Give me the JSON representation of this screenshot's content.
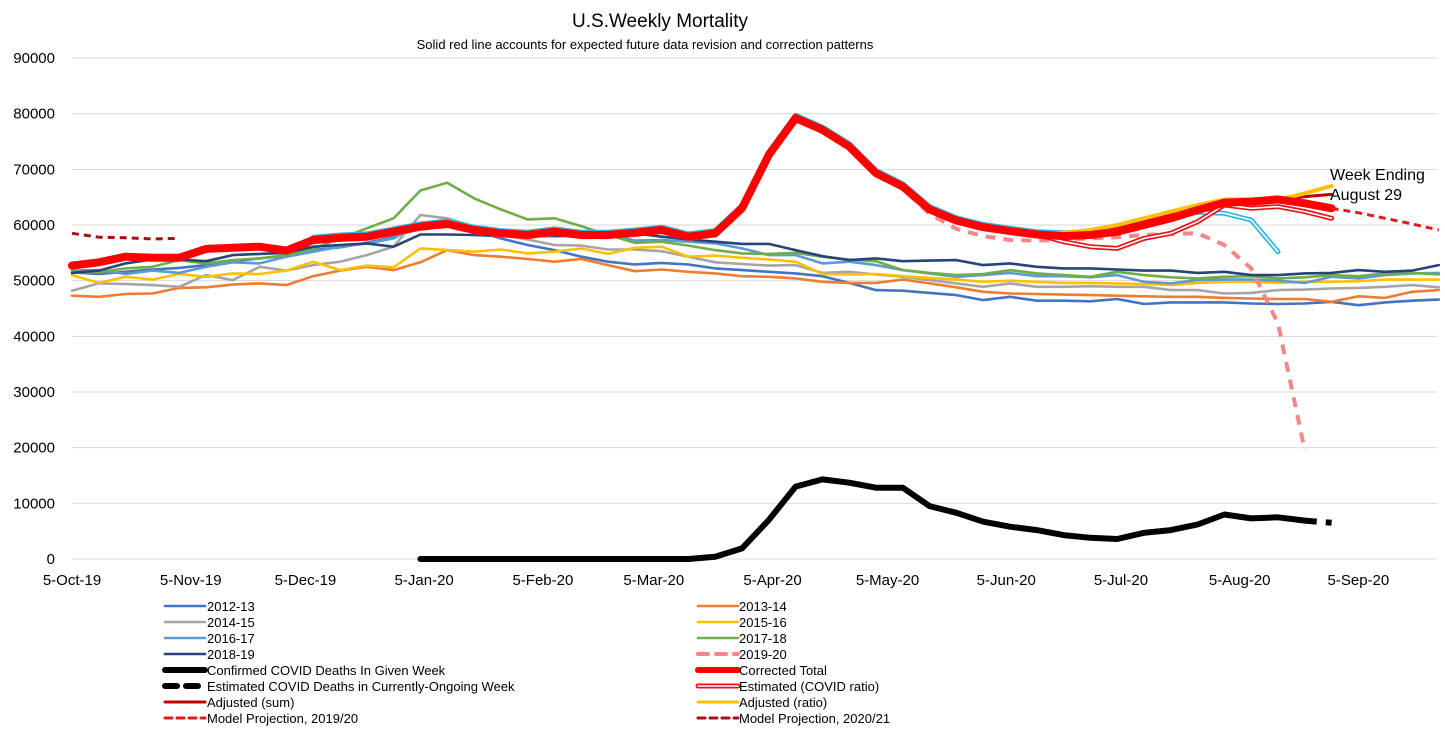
{
  "chart_data": {
    "type": "line",
    "title": "U.S.Weekly Mortality",
    "subtitle": "Solid red line accounts for expected future data revision and correction patterns",
    "xlabel": "",
    "ylabel": "",
    "x_unit": "week index (weekly points starting 5-Oct-19)",
    "ylim": [
      0,
      90000
    ],
    "y_ticks": [
      "0",
      "10000",
      "20000",
      "30000",
      "40000",
      "50000",
      "60000",
      "70000",
      "80000",
      "90000"
    ],
    "x_ticks": [
      {
        "label": "5-Oct-19",
        "week": 0
      },
      {
        "label": "5-Nov-19",
        "week": 4.43
      },
      {
        "label": "5-Dec-19",
        "week": 8.71
      },
      {
        "label": "5-Jan-20",
        "week": 13.14
      },
      {
        "label": "5-Feb-20",
        "week": 17.57
      },
      {
        "label": "5-Mar-20",
        "week": 21.71
      },
      {
        "label": "5-Apr-20",
        "week": 26.14
      },
      {
        "label": "5-May-20",
        "week": 30.43
      },
      {
        "label": "5-Jun-20",
        "week": 34.86
      },
      {
        "label": "5-Jul-20",
        "week": 39.14
      },
      {
        "label": "5-Aug-20",
        "week": 43.57
      },
      {
        "label": "5-Sep-20",
        "week": 48
      }
    ],
    "grid": true,
    "legend_position": "bottom",
    "annotation": {
      "line1": "Week Ending",
      "line2": "August 29"
    },
    "series": [
      {
        "id": "s1213",
        "name": "2012-13",
        "color": "#4472C4",
        "style": "solid",
        "start": 0,
        "values": [
          51500,
          51200,
          51600,
          52000,
          52300,
          52800,
          53500,
          54000,
          54500,
          55500,
          56000,
          56800,
          57800,
          59500,
          60500,
          59000,
          57600,
          56400,
          55500,
          54300,
          53400,
          52900,
          53200,
          52900,
          52200,
          51900,
          51600,
          51300,
          50800,
          49600,
          48300,
          48200,
          47800,
          47400,
          46500,
          47100,
          46400,
          46400,
          46300,
          46700,
          45800,
          46100,
          46100,
          46100,
          45900,
          45800,
          45900,
          46200,
          45600,
          46100,
          46400,
          46600
        ]
      },
      {
        "id": "s1314",
        "name": "2013-14",
        "color": "#ED7D31",
        "style": "solid",
        "start": 0,
        "values": [
          47300,
          47100,
          47600,
          47700,
          48700,
          48800,
          49300,
          49500,
          49200,
          50800,
          51800,
          52500,
          51900,
          53300,
          55500,
          54600,
          54300,
          53900,
          53400,
          53900,
          52800,
          51700,
          52000,
          51600,
          51300,
          50800,
          50700,
          50400,
          49800,
          49600,
          49600,
          50200,
          49500,
          48800,
          48000,
          47700,
          47600,
          47500,
          47400,
          47300,
          47200,
          47100,
          47100,
          46900,
          46800,
          46700,
          46700,
          46200,
          47200,
          46900,
          48000,
          48300
        ]
      },
      {
        "id": "s1415",
        "name": "2014-15",
        "color": "#A5A5A5",
        "style": "solid",
        "start": 0,
        "values": [
          48200,
          49500,
          49400,
          49200,
          48900,
          51000,
          50100,
          52500,
          51800,
          52800,
          53400,
          54600,
          56100,
          61800,
          61200,
          59700,
          58200,
          57400,
          56400,
          56300,
          55600,
          55600,
          55300,
          54300,
          53300,
          53000,
          52700,
          52800,
          51400,
          51600,
          51100,
          50700,
          50100,
          49500,
          48900,
          49500,
          48900,
          48900,
          49000,
          48900,
          48900,
          48300,
          48300,
          47700,
          47800,
          48300,
          48400,
          48600,
          48700,
          48900,
          49200,
          48800
        ]
      },
      {
        "id": "s1516",
        "name": "2015-16",
        "color": "#FFC000",
        "style": "solid",
        "start": 0,
        "values": [
          51000,
          49600,
          50700,
          50200,
          51200,
          50700,
          51300,
          51200,
          51800,
          53400,
          51900,
          52700,
          52400,
          55800,
          55500,
          55200,
          55600,
          54900,
          55200,
          55800,
          54800,
          55900,
          56100,
          54300,
          54500,
          54100,
          53800,
          53400,
          51200,
          51100,
          51200,
          50800,
          50500,
          50200,
          49800,
          50000,
          49800,
          49600,
          49600,
          49500,
          49400,
          49200,
          49600,
          49800,
          49800,
          49600,
          49800,
          49800,
          49900,
          50200,
          50200,
          50200
        ]
      },
      {
        "id": "s1617",
        "name": "2016-17",
        "color": "#5B9BD5",
        "style": "solid",
        "start": 0,
        "values": [
          51800,
          51900,
          51200,
          51800,
          51400,
          52500,
          53300,
          53100,
          54300,
          55200,
          56100,
          56700,
          57600,
          60300,
          60900,
          59100,
          59100,
          58800,
          59100,
          58800,
          58500,
          57200,
          57300,
          57000,
          56700,
          55800,
          54600,
          54600,
          53100,
          53400,
          52800,
          51900,
          51300,
          50700,
          51000,
          51400,
          50800,
          50800,
          50600,
          51000,
          49800,
          49500,
          50100,
          50200,
          50200,
          50000,
          49600,
          50700,
          50400,
          51000,
          51300,
          51400
        ]
      },
      {
        "id": "s1718",
        "name": "2017-18",
        "color": "#70AD47",
        "style": "solid",
        "start": 0,
        "values": [
          51600,
          51500,
          52200,
          52500,
          53700,
          53100,
          53700,
          54000,
          54600,
          55700,
          57600,
          59400,
          61200,
          66200,
          67600,
          64800,
          62800,
          61000,
          61200,
          59800,
          58200,
          56800,
          57000,
          56300,
          55500,
          54900,
          54800,
          55000,
          54300,
          53800,
          53500,
          51900,
          51400,
          51000,
          51200,
          51900,
          51300,
          51000,
          50700,
          51600,
          51000,
          50600,
          50400,
          50700,
          50800,
          50400,
          50600,
          51000,
          50800,
          51300,
          51400,
          51100
        ]
      },
      {
        "id": "s1819",
        "name": "2018-19",
        "color": "#264478",
        "style": "solid",
        "start": 0,
        "values": [
          51400,
          51800,
          53100,
          53800,
          53800,
          53500,
          54600,
          54800,
          55000,
          56100,
          56400,
          56700,
          56100,
          58300,
          58300,
          58200,
          58000,
          58000,
          58000,
          58000,
          57900,
          58500,
          57900,
          57400,
          57000,
          56600,
          56600,
          55500,
          54400,
          53700,
          54000,
          53500,
          53600,
          53700,
          52800,
          53100,
          52500,
          52200,
          52200,
          52000,
          51800,
          51800,
          51400,
          51600,
          51000,
          51000,
          51300,
          51400,
          51900,
          51600,
          51800,
          52800
        ]
      },
      {
        "id": "s1920",
        "name": "2019-20",
        "color": "#F4868A",
        "style": "dashed",
        "start": 9,
        "values": [
          56900,
          57300,
          57500,
          58400,
          59300,
          59800,
          58700,
          58100,
          57800,
          58400,
          57800,
          57800,
          58200,
          58700,
          57500,
          58100,
          62600,
          72200,
          78800,
          76700,
          73700,
          68900,
          66500,
          62000,
          59300,
          58000,
          57300,
          57200,
          57400,
          57600,
          57800,
          58200,
          58400,
          58500,
          56400,
          52200,
          42300,
          19500
        ]
      },
      {
        "id": "scyan",
        "name": "",
        "color": "#2FB5E0",
        "style": "double",
        "start": 9,
        "values": [
          57800,
          58200,
          58400,
          59300,
          60200,
          60700,
          59600,
          59000,
          58700,
          59300,
          58700,
          58700,
          59100,
          59600,
          58400,
          59000,
          63500,
          73100,
          79700,
          77600,
          74600,
          69800,
          67400,
          63300,
          61300,
          60100,
          59400,
          58800,
          58600,
          58800,
          59600,
          60600,
          61500,
          62300,
          62100,
          60900,
          55200
        ]
      },
      {
        "id": "est_ratio",
        "name": "Estimated (COVID ratio)",
        "color": "#E8141B",
        "style": "double",
        "start": 36,
        "values": [
          58300,
          57000,
          56100,
          55800,
          57600,
          58500,
          60600,
          63600,
          63000,
          63300,
          62400,
          61200
        ]
      },
      {
        "id": "adj_sum",
        "name": "Adjusted (sum)",
        "color": "#C00000",
        "style": "solid",
        "start": 36,
        "values": [
          58300,
          58500,
          59000,
          59700,
          60800,
          61800,
          63000,
          64200,
          64400,
          64600,
          65100,
          65500
        ]
      },
      {
        "id": "adj_ratio",
        "name": "Adjusted (ratio)",
        "color": "#FFC000",
        "style": "solid",
        "start": 36,
        "values": [
          58300,
          58600,
          59100,
          60000,
          61200,
          62400,
          63600,
          64600,
          64600,
          64500,
          65700,
          67000
        ]
      },
      {
        "id": "corrected",
        "name": "Corrected Total",
        "color": "#FF0000",
        "style": "thick",
        "start": 0,
        "values": [
          52700,
          53300,
          54300,
          54100,
          54100,
          55700,
          55900,
          56100,
          55400,
          57300,
          57700,
          57900,
          58800,
          59700,
          60200,
          59100,
          58500,
          58200,
          58800,
          58200,
          58200,
          58600,
          59100,
          57900,
          58500,
          63000,
          72600,
          79200,
          77100,
          74100,
          69300,
          66900,
          62800,
          60800,
          59600,
          58900,
          58300,
          58000,
          58200,
          58800,
          60000,
          61200,
          62700,
          64000,
          64200,
          64600,
          63900,
          63000
        ]
      },
      {
        "id": "proj1920",
        "name": "Model Projection, 2019/20",
        "color": "#E31A1C",
        "style": "dashed-thin",
        "start": 47,
        "values": [
          63000,
          62200,
          61200,
          60200,
          59100
        ]
      },
      {
        "id": "proj2021",
        "name": "Model Projection, 2020/21",
        "color": "#A50F15",
        "style": "dashed-thin",
        "start": 0,
        "values": [
          58500,
          57800,
          57700,
          57500,
          57600
        ]
      },
      {
        "id": "covid",
        "name": "Confirmed COVID Deaths In Given Week",
        "color": "#000000",
        "style": "black",
        "start": 13,
        "values": [
          0,
          0,
          0,
          0,
          0,
          0,
          0,
          0,
          0,
          0,
          0,
          400,
          1900,
          7000,
          13000,
          14300,
          13700,
          12800,
          12800,
          9500,
          8300,
          6700,
          5800,
          5200,
          4300,
          3800,
          3600,
          4700,
          5200,
          6200,
          8000,
          7300,
          7500,
          6900
        ]
      },
      {
        "id": "covid_est",
        "name": "Estimated COVID Deaths in Currently-Ongoing Week",
        "color": "#000000",
        "style": "black-dashed",
        "start": 46,
        "values": [
          6900,
          6500
        ]
      }
    ],
    "legend": {
      "left": [
        "s1213",
        "s1415",
        "s1617",
        "s1819",
        "covid",
        "covid_est",
        "adj_sum",
        "proj1920"
      ],
      "right": [
        "s1314",
        "s1516",
        "s1718",
        "s1920",
        "corrected",
        "est_ratio",
        "adj_ratio",
        "proj2021"
      ]
    }
  }
}
